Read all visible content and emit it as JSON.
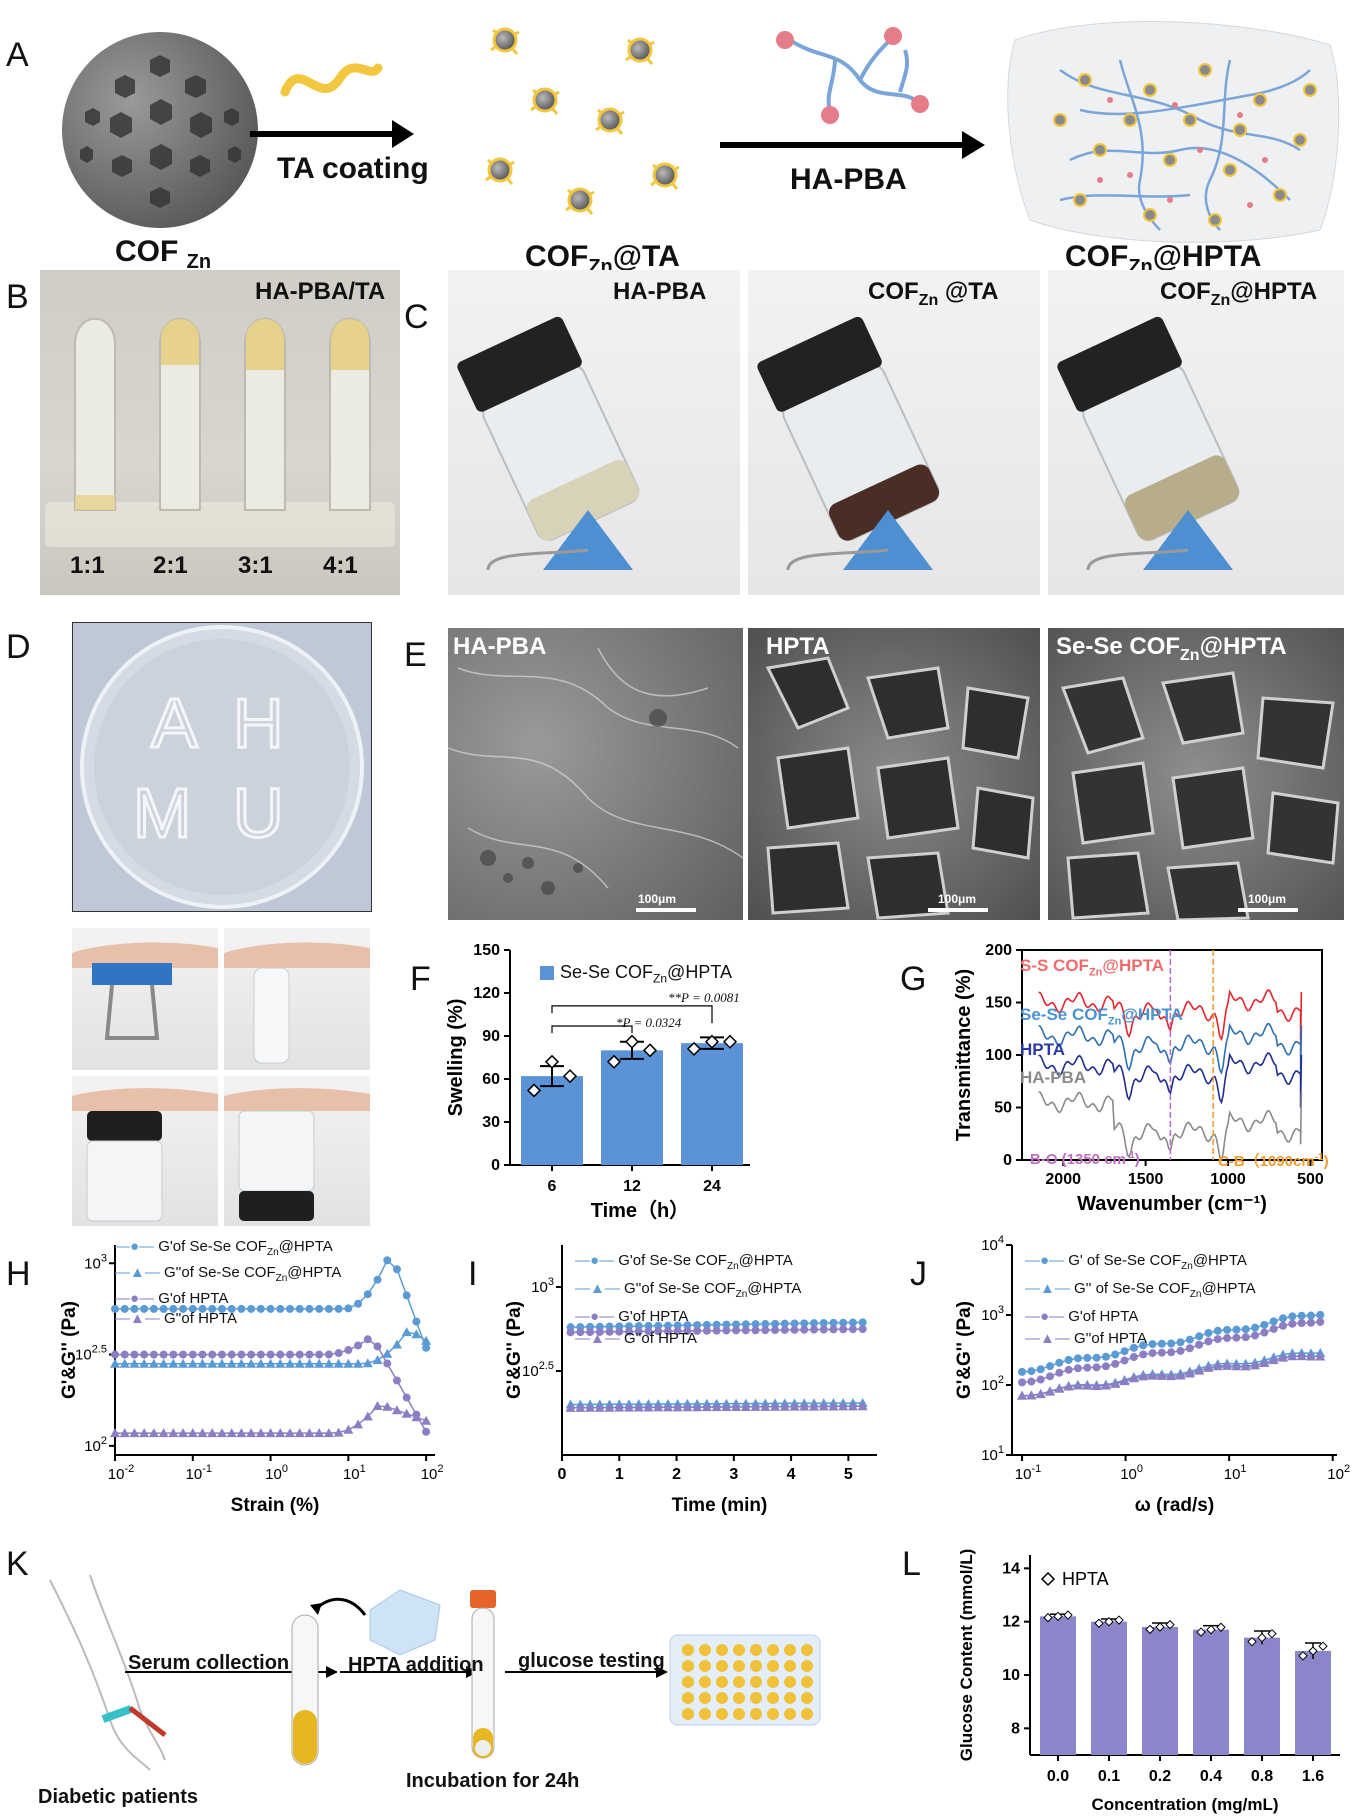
{
  "panel_letters": [
    "A",
    "B",
    "C",
    "D",
    "E",
    "F",
    "G",
    "H",
    "I",
    "J",
    "K",
    "L"
  ],
  "A": {
    "arrow1": "TA coating",
    "arrow2": "HA-PBA",
    "cof": "COF",
    "cof_sub": "Zn",
    "cofta_main": "COF",
    "cofta_sub": "Zn",
    "cofta_tail": "@TA",
    "hpta_main": "COF",
    "hpta_sub": "Zn",
    "hpta_tail": "@HPTA"
  },
  "B": {
    "title": "HA-PBA/TA",
    "ratios": [
      "1:1",
      "2:1",
      "3:1",
      "4:1"
    ]
  },
  "C": {
    "t1": "HA-PBA",
    "t2_main": "COF",
    "t2_sub": "Zn",
    "t2_tail": " @TA",
    "t3_main": "COF",
    "t3_sub": "Zn",
    "t3_tail": "@HPTA"
  },
  "D": {
    "letters": [
      "A",
      "H",
      "M",
      "U"
    ]
  },
  "E": {
    "t1": "HA-PBA",
    "t2": "HPTA",
    "t3_main": "Se-Se COF",
    "t3_sub": "Zn",
    "t3_tail": "@HPTA",
    "scale": "100μm"
  },
  "colors": {
    "bar_blue": "#5b93d6",
    "bar_purple": "#8a86c9",
    "series_blue": "#5b9bd5",
    "series_purple": "#8d7ec4",
    "ftir_red": "#e8242b",
    "ftir_blue": "#2e6fb0",
    "ftir_navy": "#1f2d8f",
    "ftir_gray": "#8a8a8a"
  },
  "F": {
    "legend_main": "Se-Se COF",
    "legend_sub": "Zn",
    "legend_tail": "@HPTA",
    "p1": "*P = 0.0324",
    "p2": "**P = 0.0081"
  },
  "G": {
    "l1_main": "S-S COF",
    "l1_sub": "Zn",
    "l1_tail": "@HPTA",
    "l2_main": "Se-Se COF",
    "l2_sub": "Zn",
    "l2_tail": "@HPTA",
    "l3": "HPTA",
    "l4": "HA-PBA",
    "bo": "B-O (1350 cm",
    "cb": "C-B（1090cm"
  },
  "H": {
    "leg": [
      "G'of Se-Se COF",
      "G''of Se-Se COF",
      "G'of HPTA",
      "G''of HPTA"
    ]
  },
  "I": {
    "leg": [
      "G'of Se-Se COF",
      "G''of Se-Se COF",
      "G'of HPTA",
      "G''of HPTA"
    ]
  },
  "J": {
    "leg": [
      "G' of Se-Se COF",
      "G'' of Se-Se COF",
      "G'of HPTA",
      "G''of HPTA"
    ]
  },
  "K": {
    "step1": "Serum collection",
    "step2": "HPTA addition",
    "step3": "glucose testing",
    "patients": "Diabetic patients",
    "incubation": "Incubation for 24h"
  },
  "chart_data": [
    {
      "id": "F",
      "type": "bar",
      "categories": [
        "6",
        "12",
        "24"
      ],
      "values": [
        62,
        80,
        85
      ],
      "errors": [
        7,
        6,
        4
      ],
      "points": [
        [
          52,
          72,
          62
        ],
        [
          72,
          86,
          80
        ],
        [
          81,
          86,
          86
        ]
      ],
      "xlabel": "Time（h）",
      "ylabel": "Swelling (%)",
      "ylim": [
        0,
        150
      ],
      "yticks": [
        0,
        30,
        60,
        90,
        120,
        150
      ],
      "legend": "Se-Se COFZn@HPTA"
    },
    {
      "id": "G",
      "type": "line",
      "xlabel": "Wavenumber (cm⁻¹)",
      "ylabel": "Transmittance (%)",
      "xlim": [
        2250,
        430
      ],
      "ylim": [
        0,
        200
      ],
      "xticks": [
        2000,
        1500,
        1000,
        500
      ],
      "yticks": [
        0,
        50,
        100,
        150,
        200
      ],
      "series": [
        {
          "name": "S-S COFZn@HPTA",
          "offset": 150
        },
        {
          "name": "Se-Se COFZn@HPTA",
          "offset": 118
        },
        {
          "name": "HPTA",
          "offset": 90
        },
        {
          "name": "HA-PBA",
          "offset": 55
        }
      ],
      "markers": [
        1350,
        1090
      ]
    },
    {
      "id": "H",
      "type": "scatter",
      "xlabel": "Strain (%)",
      "ylabel": "G'&G'' (Pa)",
      "xscale": "log",
      "yscale": "log",
      "xlim": [
        0.01,
        130
      ],
      "ylim_log10": [
        1.95,
        3.1
      ],
      "xtick_labels": [
        "10-2",
        "10-1",
        "100",
        "101",
        "102"
      ],
      "ytick_labels": [
        "102",
        "102.5",
        "103"
      ],
      "series": [
        {
          "name": "G'of Se-Se COFZn@HPTA",
          "plateau": 2.75,
          "peak_x": 35,
          "peak": 3.06,
          "end": 2.48
        },
        {
          "name": "G''of Se-Se COFZn@HPTA",
          "plateau": 2.45,
          "peak_x": 60,
          "peak": 2.64,
          "end": 2.56
        },
        {
          "name": "G'of HPTA",
          "plateau": 2.5,
          "peak_x": 20,
          "peak": 2.6,
          "end": 2.04
        },
        {
          "name": "G''of HPTA",
          "plateau": 2.07,
          "peak_x": 25,
          "peak": 2.23,
          "end": 2.13
        }
      ]
    },
    {
      "id": "I",
      "type": "scatter",
      "xlabel": "Time (min)",
      "ylabel": "G'&G'' (Pa)",
      "xlim": [
        0,
        5.5
      ],
      "ylim_log10": [
        2.0,
        3.25
      ],
      "xticks": [
        0,
        1,
        2,
        3,
        4,
        5
      ],
      "ytick_labels": [
        "103",
        "102.5"
      ],
      "series": [
        {
          "name": "G'of Se-Se COFZn@HPTA",
          "start": 2.76,
          "end": 2.79
        },
        {
          "name": "G''of Se-Se COFZn@HPTA",
          "start": 2.3,
          "end": 2.31
        },
        {
          "name": "G'of HPTA",
          "start": 2.73,
          "end": 2.75
        },
        {
          "name": "G''of HPTA",
          "start": 2.28,
          "end": 2.29
        }
      ]
    },
    {
      "id": "J",
      "type": "scatter",
      "xlabel": "ω (rad/s)",
      "ylabel": "G'&G'' (Pa)",
      "xscale": "log",
      "yscale": "log",
      "xlim": [
        0.08,
        110
      ],
      "ylim_log10": [
        1,
        4
      ],
      "xtick_labels": [
        "10-1",
        "100",
        "101",
        "102"
      ],
      "ytick_labels": [
        "101",
        "102",
        "103",
        "104"
      ],
      "series": [
        {
          "name": "G' of Se-Se COFZn@HPTA",
          "start": 2.2,
          "end": 3.05
        },
        {
          "name": "G'' of Se-Se COFZn@HPTA",
          "start": 1.86,
          "end": 2.5
        },
        {
          "name": "G'of HPTA",
          "start": 2.05,
          "end": 2.95
        },
        {
          "name": "G''of HPTA",
          "start": 1.86,
          "end": 2.45
        }
      ]
    },
    {
      "id": "L",
      "type": "bar",
      "categories": [
        "0.0",
        "0.1",
        "0.2",
        "0.4",
        "0.8",
        "1.6"
      ],
      "values": [
        12.2,
        12.0,
        11.8,
        11.7,
        11.4,
        10.9
      ],
      "errors": [
        0.08,
        0.1,
        0.15,
        0.15,
        0.25,
        0.3
      ],
      "xlabel": "Concentration (mg/mL)",
      "ylabel": "Glucose Content (mmol/L)",
      "ylim": [
        7,
        14.5
      ],
      "yticks": [
        8,
        10,
        12,
        14
      ],
      "legend": "HPTA"
    }
  ]
}
